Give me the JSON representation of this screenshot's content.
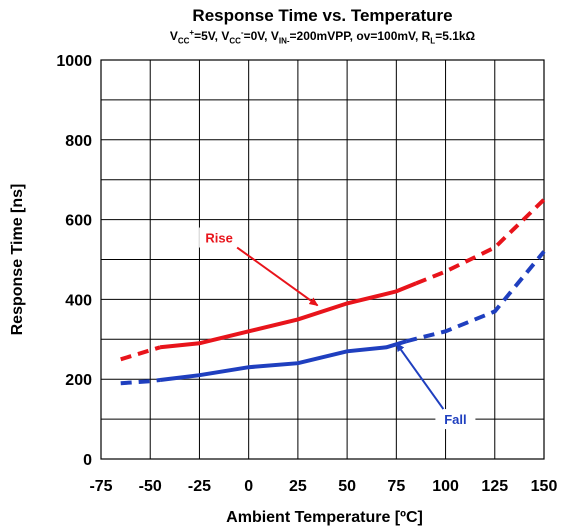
{
  "chart_data": {
    "type": "line",
    "title": "Response Time vs. Temperature",
    "subtitle_parts": [
      {
        "t": "V"
      },
      {
        "t": "CC",
        "sub": true
      },
      {
        "t": "+",
        "sup": true
      },
      {
        "t": "=5V, V"
      },
      {
        "t": "CC",
        "sub": true
      },
      {
        "t": "-",
        "sup": true
      },
      {
        "t": "=0V, V"
      },
      {
        "t": "IN-",
        "sub": true
      },
      {
        "t": "=200mVPP, ov=100mV, R"
      },
      {
        "t": "L",
        "sub": true
      },
      {
        "t": "=5.1kΩ"
      }
    ],
    "xlabel": "Ambient Temperature [ºC]",
    "ylabel": "Response Time [ns]",
    "xlim": [
      -75,
      150
    ],
    "ylim": [
      0,
      1000
    ],
    "xticks": [
      -75,
      -50,
      -25,
      0,
      25,
      50,
      75,
      100,
      125,
      150
    ],
    "yticks": [
      0,
      200,
      400,
      600,
      800,
      1000
    ],
    "grid": true,
    "series": [
      {
        "name": "Rise",
        "color": "#e8141b",
        "points": [
          [
            -65,
            250
          ],
          [
            -45,
            280
          ],
          [
            -25,
            290
          ],
          [
            0,
            320
          ],
          [
            25,
            350
          ],
          [
            50,
            390
          ],
          [
            75,
            420
          ],
          [
            85,
            440
          ],
          [
            100,
            470
          ],
          [
            125,
            530
          ],
          [
            150,
            650
          ]
        ],
        "solid_range": [
          -45,
          85
        ]
      },
      {
        "name": "Fall",
        "color": "#1f3fbf",
        "points": [
          [
            -65,
            190
          ],
          [
            -50,
            195
          ],
          [
            -25,
            210
          ],
          [
            0,
            230
          ],
          [
            25,
            240
          ],
          [
            50,
            270
          ],
          [
            70,
            280
          ],
          [
            80,
            295
          ],
          [
            100,
            320
          ],
          [
            125,
            370
          ],
          [
            150,
            520
          ]
        ],
        "solid_range": [
          -45,
          80
        ]
      }
    ],
    "annotations": [
      {
        "text": "Rise",
        "label_at": [
          -15,
          545
        ],
        "arrow_to": [
          35,
          385
        ]
      },
      {
        "text": "Fall",
        "label_at": [
          105,
          90
        ],
        "arrow_to": [
          75,
          290
        ]
      }
    ]
  }
}
